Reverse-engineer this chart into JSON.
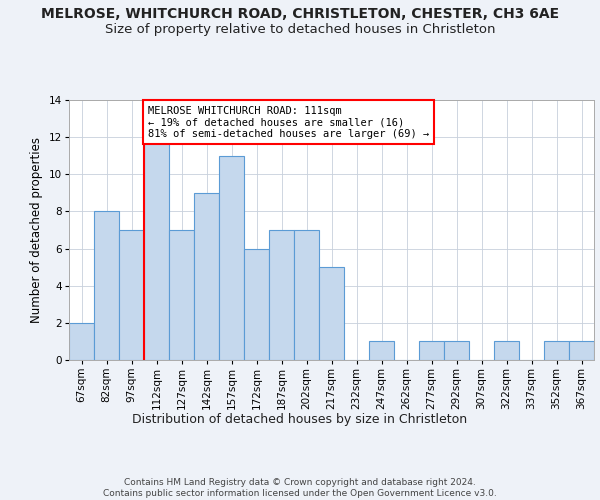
{
  "title": "MELROSE, WHITCHURCH ROAD, CHRISTLETON, CHESTER, CH3 6AE",
  "subtitle": "Size of property relative to detached houses in Christleton",
  "xlabel": "Distribution of detached houses by size in Christleton",
  "ylabel": "Number of detached properties",
  "categories": [
    "67sqm",
    "82sqm",
    "97sqm",
    "112sqm",
    "127sqm",
    "142sqm",
    "157sqm",
    "172sqm",
    "187sqm",
    "202sqm",
    "217sqm",
    "232sqm",
    "247sqm",
    "262sqm",
    "277sqm",
    "292sqm",
    "307sqm",
    "322sqm",
    "337sqm",
    "352sqm",
    "367sqm"
  ],
  "values": [
    2,
    8,
    7,
    12,
    7,
    9,
    11,
    6,
    7,
    7,
    5,
    0,
    1,
    0,
    1,
    1,
    0,
    1,
    0,
    1,
    1
  ],
  "bar_color": "#c5d8ed",
  "bar_edgecolor": "#5b9bd5",
  "annotation_line1": "MELROSE WHITCHURCH ROAD: 111sqm",
  "annotation_line2": "← 19% of detached houses are smaller (16)",
  "annotation_line3": "81% of semi-detached houses are larger (69) →",
  "ylim": [
    0,
    14
  ],
  "yticks": [
    0,
    2,
    4,
    6,
    8,
    10,
    12,
    14
  ],
  "footer": "Contains HM Land Registry data © Crown copyright and database right 2024.\nContains public sector information licensed under the Open Government Licence v3.0.",
  "background_color": "#eef2f8",
  "plot_bg_color": "#ffffff",
  "grid_color": "#c8d0dc",
  "title_fontsize": 10,
  "subtitle_fontsize": 9.5,
  "xlabel_fontsize": 9,
  "ylabel_fontsize": 8.5,
  "tick_fontsize": 7.5,
  "annotation_fontsize": 7.5,
  "footer_fontsize": 6.5
}
